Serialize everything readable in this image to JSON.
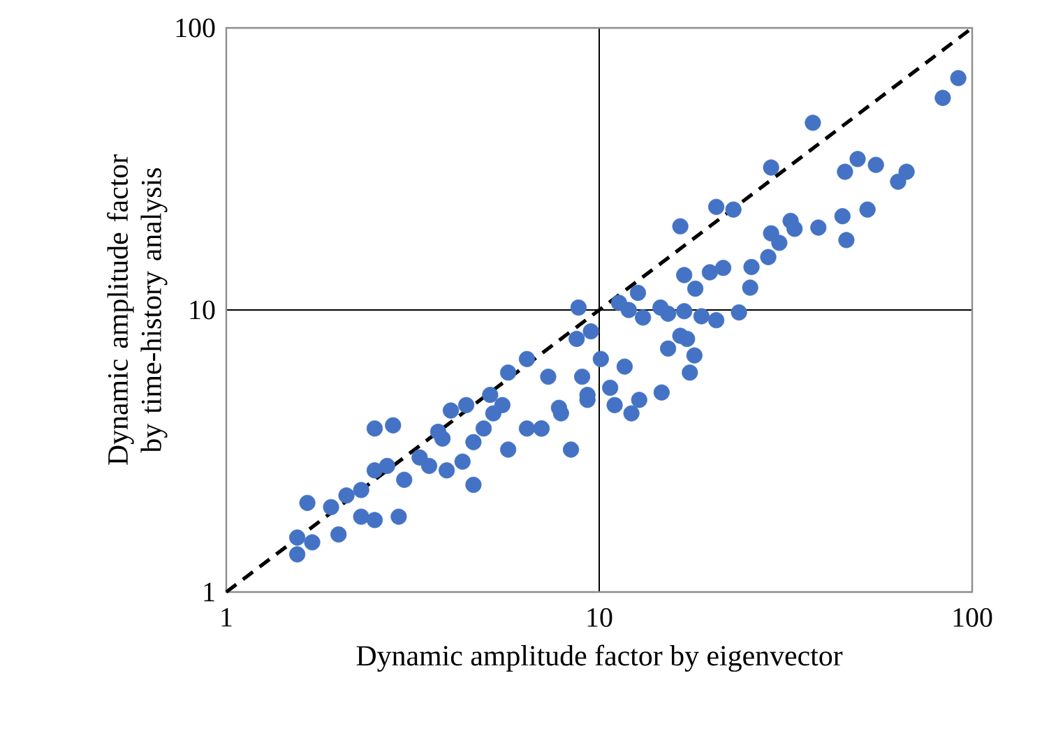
{
  "chart_data": {
    "type": "scatter",
    "xlabel": "Dynamic amplitude factor by eigenvector",
    "ylabel": "Dynamic amplitude factor by time-history analysis",
    "log": "xy",
    "xlim": [
      1,
      100
    ],
    "ylim": [
      1,
      100
    ],
    "xticks": [
      1,
      10,
      100
    ],
    "yticks": [
      1,
      10,
      100
    ],
    "grid": true,
    "marker": "circle",
    "series": [
      {
        "color": "#4472c4",
        "x": [
          91.8,
          83.4,
          37.4,
          28.9,
          45.6,
          49.3,
          55.2,
          63.3,
          66.7,
          20.6,
          22.9,
          16.5,
          32.6,
          33.4,
          38.7,
          44.9,
          52.4,
          46.0,
          28.9,
          30.4,
          28.4,
          25.6,
          16.9,
          19.8,
          21.5,
          18.1,
          25.4,
          23.7,
          20.6,
          18.8,
          16.9,
          15.3,
          14.6,
          8.8,
          11.3,
          12.7,
          12.0,
          13.1,
          16.5,
          17.2,
          15.3,
          18.0,
          17.5,
          14.7,
          12.8,
          12.2,
          11.0,
          10.7,
          8.4,
          7.9,
          7.0,
          9.5,
          8.7,
          10.1,
          11.7,
          9.0,
          9.3,
          2.5,
          2.8,
          1.55,
          1.55,
          1.65,
          1.91,
          2.1,
          2.0,
          2.3,
          2.5,
          2.9,
          2.3,
          2.5,
          2.7,
          3.0,
          3.3,
          3.5,
          3.9,
          4.6,
          4.3,
          3.8,
          4.0,
          4.4,
          4.9,
          5.5,
          5.7,
          6.4,
          7.0,
          5.7,
          6.4,
          7.3,
          7.8,
          9.3,
          3.7,
          4.6,
          5.2,
          1.7,
          5.1
        ],
        "values": [
          66.4,
          56.5,
          46.1,
          32.0,
          30.9,
          34.3,
          32.7,
          28.5,
          30.9,
          23.2,
          22.7,
          19.8,
          20.7,
          19.4,
          19.6,
          21.5,
          22.7,
          17.7,
          18.7,
          17.3,
          15.4,
          14.2,
          13.3,
          13.6,
          14.1,
          11.9,
          12.0,
          9.8,
          9.2,
          9.5,
          9.9,
          9.7,
          10.2,
          10.2,
          10.6,
          11.5,
          10.0,
          9.4,
          8.1,
          7.9,
          7.3,
          6.9,
          6.0,
          5.1,
          4.8,
          4.3,
          4.6,
          5.3,
          3.2,
          4.3,
          3.8,
          8.4,
          7.9,
          6.7,
          6.3,
          5.8,
          4.8,
          3.8,
          3.9,
          1.36,
          1.56,
          2.07,
          2.0,
          2.2,
          1.6,
          1.85,
          1.8,
          1.85,
          2.3,
          2.7,
          2.8,
          2.5,
          3.0,
          2.8,
          2.7,
          2.4,
          2.9,
          3.5,
          4.4,
          4.6,
          3.8,
          4.6,
          3.2,
          3.8,
          3.8,
          6.0,
          6.7,
          5.8,
          4.5,
          5.0,
          3.7,
          3.4,
          4.3,
          1.5,
          5.0
        ]
      },
      {
        "type": "line",
        "color": "#000000",
        "marker": "none",
        "line_style": "dashed",
        "x": [
          1,
          100
        ],
        "values": [
          1,
          100
        ]
      }
    ]
  }
}
